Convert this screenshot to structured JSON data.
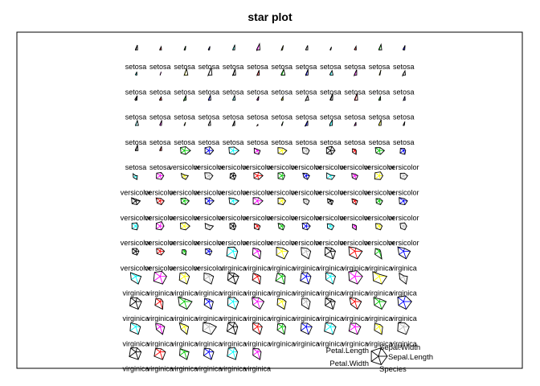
{
  "chart_data": {
    "type": "star",
    "title": "star plot",
    "variables": [
      "Sepal.Length",
      "Sepal.Width",
      "Petal.Length",
      "Petal.Width",
      "Species"
    ],
    "series_colors": [
      "#000000",
      "#ff0000",
      "#00cd00",
      "#0000ff",
      "#00ffff",
      "#ff00ff",
      "#ffff00",
      "#bebebe"
    ],
    "layout": {
      "columns": 12,
      "rows": 13
    },
    "species_levels": [
      "setosa",
      "versicolor",
      "virginica"
    ],
    "observations": [
      [
        5.1,
        3.5,
        1.4,
        0.2,
        1
      ],
      [
        4.9,
        3.0,
        1.4,
        0.2,
        1
      ],
      [
        4.7,
        3.2,
        1.3,
        0.2,
        1
      ],
      [
        4.6,
        3.1,
        1.5,
        0.2,
        1
      ],
      [
        5.0,
        3.6,
        1.4,
        0.2,
        1
      ],
      [
        5.4,
        3.9,
        1.7,
        0.4,
        1
      ],
      [
        4.6,
        3.4,
        1.4,
        0.3,
        1
      ],
      [
        5.0,
        3.4,
        1.5,
        0.2,
        1
      ],
      [
        4.4,
        2.9,
        1.4,
        0.2,
        1
      ],
      [
        4.9,
        3.1,
        1.5,
        0.1,
        1
      ],
      [
        5.4,
        3.7,
        1.5,
        0.2,
        1
      ],
      [
        4.8,
        3.4,
        1.6,
        0.2,
        1
      ],
      [
        4.8,
        3.0,
        1.4,
        0.1,
        1
      ],
      [
        4.3,
        3.0,
        1.1,
        0.1,
        1
      ],
      [
        5.8,
        4.0,
        1.2,
        0.2,
        1
      ],
      [
        5.7,
        4.4,
        1.5,
        0.4,
        1
      ],
      [
        5.4,
        3.9,
        1.3,
        0.4,
        1
      ],
      [
        5.1,
        3.5,
        1.4,
        0.3,
        1
      ],
      [
        5.7,
        3.8,
        1.7,
        0.3,
        1
      ],
      [
        5.1,
        3.8,
        1.5,
        0.3,
        1
      ],
      [
        5.4,
        3.4,
        1.7,
        0.2,
        1
      ],
      [
        5.1,
        3.7,
        1.5,
        0.4,
        1
      ],
      [
        4.6,
        3.6,
        1.0,
        0.2,
        1
      ],
      [
        5.1,
        3.3,
        1.7,
        0.5,
        1
      ],
      [
        4.8,
        3.4,
        1.9,
        0.2,
        1
      ],
      [
        5.0,
        3.0,
        1.6,
        0.2,
        1
      ],
      [
        5.0,
        3.4,
        1.6,
        0.4,
        1
      ],
      [
        5.2,
        3.5,
        1.5,
        0.2,
        1
      ],
      [
        5.2,
        3.4,
        1.4,
        0.2,
        1
      ],
      [
        4.7,
        3.2,
        1.6,
        0.2,
        1
      ],
      [
        4.8,
        3.1,
        1.6,
        0.2,
        1
      ],
      [
        5.4,
        3.4,
        1.5,
        0.4,
        1
      ],
      [
        5.2,
        4.1,
        1.5,
        0.1,
        1
      ],
      [
        5.5,
        4.2,
        1.4,
        0.2,
        1
      ],
      [
        4.9,
        3.1,
        1.5,
        0.2,
        1
      ],
      [
        5.0,
        3.2,
        1.2,
        0.2,
        1
      ],
      [
        5.5,
        3.5,
        1.3,
        0.2,
        1
      ],
      [
        4.9,
        3.6,
        1.4,
        0.1,
        1
      ],
      [
        4.4,
        3.0,
        1.3,
        0.2,
        1
      ],
      [
        5.1,
        3.4,
        1.5,
        0.2,
        1
      ],
      [
        5.0,
        3.5,
        1.3,
        0.3,
        1
      ],
      [
        4.5,
        2.3,
        1.3,
        0.3,
        1
      ],
      [
        4.4,
        3.2,
        1.3,
        0.2,
        1
      ],
      [
        5.0,
        3.5,
        1.6,
        0.6,
        1
      ],
      [
        5.1,
        3.8,
        1.9,
        0.4,
        1
      ],
      [
        4.8,
        3.0,
        1.4,
        0.3,
        1
      ],
      [
        5.1,
        3.8,
        1.6,
        0.2,
        1
      ],
      [
        4.6,
        3.2,
        1.4,
        0.2,
        1
      ],
      [
        5.3,
        3.7,
        1.5,
        0.2,
        1
      ],
      [
        5.0,
        3.3,
        1.4,
        0.2,
        1
      ],
      [
        7.0,
        3.2,
        4.7,
        1.4,
        2
      ],
      [
        6.4,
        3.2,
        4.5,
        1.5,
        2
      ],
      [
        6.9,
        3.1,
        4.9,
        1.5,
        2
      ],
      [
        5.5,
        2.3,
        4.0,
        1.3,
        2
      ],
      [
        6.5,
        2.8,
        4.6,
        1.5,
        2
      ],
      [
        5.7,
        2.8,
        4.5,
        1.3,
        2
      ],
      [
        6.3,
        3.3,
        4.7,
        1.6,
        2
      ],
      [
        4.9,
        2.4,
        3.3,
        1.0,
        2
      ],
      [
        6.6,
        2.9,
        4.6,
        1.3,
        2
      ],
      [
        5.2,
        2.7,
        3.9,
        1.4,
        2
      ],
      [
        5.0,
        2.0,
        3.5,
        1.0,
        2
      ],
      [
        5.9,
        3.0,
        4.2,
        1.5,
        2
      ],
      [
        6.0,
        2.2,
        4.0,
        1.0,
        2
      ],
      [
        6.1,
        2.9,
        4.7,
        1.4,
        2
      ],
      [
        5.6,
        2.9,
        3.6,
        1.3,
        2
      ],
      [
        6.7,
        3.1,
        4.4,
        1.4,
        2
      ],
      [
        5.6,
        3.0,
        4.5,
        1.5,
        2
      ],
      [
        5.8,
        2.7,
        4.1,
        1.0,
        2
      ],
      [
        6.2,
        2.2,
        4.5,
        1.5,
        2
      ],
      [
        5.6,
        2.5,
        3.9,
        1.1,
        2
      ],
      [
        5.9,
        3.2,
        4.8,
        1.8,
        2
      ],
      [
        6.1,
        2.8,
        4.0,
        1.3,
        2
      ],
      [
        6.3,
        2.5,
        4.9,
        1.5,
        2
      ],
      [
        6.1,
        2.8,
        4.7,
        1.2,
        2
      ],
      [
        6.4,
        2.9,
        4.3,
        1.3,
        2
      ],
      [
        6.6,
        3.0,
        4.4,
        1.4,
        2
      ],
      [
        6.8,
        2.8,
        4.8,
        1.4,
        2
      ],
      [
        6.7,
        3.0,
        5.0,
        1.7,
        2
      ],
      [
        6.0,
        2.9,
        4.5,
        1.5,
        2
      ],
      [
        5.7,
        2.6,
        3.5,
        1.0,
        2
      ],
      [
        5.5,
        2.4,
        3.8,
        1.1,
        2
      ],
      [
        5.5,
        2.4,
        3.7,
        1.0,
        2
      ],
      [
        5.8,
        2.7,
        3.9,
        1.2,
        2
      ],
      [
        6.0,
        2.7,
        5.1,
        1.6,
        2
      ],
      [
        5.4,
        3.0,
        4.5,
        1.5,
        2
      ],
      [
        6.0,
        3.4,
        4.5,
        1.6,
        2
      ],
      [
        6.7,
        3.1,
        4.7,
        1.5,
        2
      ],
      [
        6.3,
        2.3,
        4.4,
        1.3,
        2
      ],
      [
        5.6,
        3.0,
        4.1,
        1.3,
        2
      ],
      [
        5.5,
        2.5,
        4.0,
        1.3,
        2
      ],
      [
        5.5,
        2.6,
        4.4,
        1.2,
        2
      ],
      [
        6.1,
        3.0,
        4.6,
        1.4,
        2
      ],
      [
        5.8,
        2.6,
        4.0,
        1.2,
        2
      ],
      [
        5.0,
        2.3,
        3.3,
        1.0,
        2
      ],
      [
        5.6,
        2.7,
        4.2,
        1.3,
        2
      ],
      [
        5.7,
        3.0,
        4.2,
        1.2,
        2
      ],
      [
        5.7,
        2.9,
        4.2,
        1.3,
        2
      ],
      [
        6.2,
        2.9,
        4.3,
        1.3,
        2
      ],
      [
        5.1,
        2.5,
        3.0,
        1.1,
        2
      ],
      [
        5.7,
        2.8,
        4.1,
        1.3,
        2
      ],
      [
        6.3,
        3.3,
        6.0,
        2.5,
        3
      ],
      [
        5.8,
        2.7,
        5.1,
        1.9,
        3
      ],
      [
        7.1,
        3.0,
        5.9,
        2.1,
        3
      ],
      [
        6.3,
        2.9,
        5.6,
        1.8,
        3
      ],
      [
        6.5,
        3.0,
        5.8,
        2.2,
        3
      ],
      [
        7.6,
        3.0,
        6.6,
        2.1,
        3
      ],
      [
        4.9,
        2.5,
        4.5,
        1.7,
        3
      ],
      [
        7.3,
        2.9,
        6.3,
        1.8,
        3
      ],
      [
        6.7,
        2.5,
        5.8,
        1.8,
        3
      ],
      [
        7.2,
        3.6,
        6.1,
        2.5,
        3
      ],
      [
        6.5,
        3.2,
        5.1,
        2.0,
        3
      ],
      [
        6.4,
        2.7,
        5.3,
        1.9,
        3
      ],
      [
        6.8,
        3.0,
        5.5,
        2.1,
        3
      ],
      [
        5.7,
        2.5,
        5.0,
        2.0,
        3
      ],
      [
        5.8,
        2.8,
        5.1,
        2.4,
        3
      ],
      [
        6.4,
        3.2,
        5.3,
        2.3,
        3
      ],
      [
        6.5,
        3.0,
        5.5,
        1.8,
        3
      ],
      [
        7.7,
        3.8,
        6.7,
        2.2,
        3
      ],
      [
        7.7,
        2.6,
        6.9,
        2.3,
        3
      ],
      [
        6.0,
        2.2,
        5.0,
        1.5,
        3
      ],
      [
        6.9,
        3.2,
        5.7,
        2.3,
        3
      ],
      [
        5.6,
        2.8,
        4.9,
        2.0,
        3
      ],
      [
        7.7,
        2.8,
        6.7,
        2.0,
        3
      ],
      [
        6.3,
        2.7,
        4.9,
        1.8,
        3
      ],
      [
        6.7,
        3.3,
        5.7,
        2.1,
        3
      ],
      [
        7.2,
        3.2,
        6.0,
        1.8,
        3
      ],
      [
        6.2,
        2.8,
        4.8,
        1.8,
        3
      ],
      [
        6.1,
        3.0,
        4.9,
        1.8,
        3
      ],
      [
        6.4,
        2.8,
        5.6,
        2.1,
        3
      ],
      [
        7.2,
        3.0,
        5.8,
        1.6,
        3
      ],
      [
        7.4,
        2.8,
        6.1,
        1.9,
        3
      ],
      [
        7.9,
        3.8,
        6.4,
        2.0,
        3
      ],
      [
        6.4,
        2.8,
        5.6,
        2.2,
        3
      ],
      [
        6.3,
        2.8,
        5.1,
        1.5,
        3
      ],
      [
        6.1,
        2.6,
        5.6,
        1.4,
        3
      ],
      [
        7.7,
        3.0,
        6.1,
        2.3,
        3
      ],
      [
        6.3,
        3.4,
        5.6,
        2.4,
        3
      ],
      [
        6.4,
        3.1,
        5.5,
        1.8,
        3
      ],
      [
        6.0,
        3.0,
        4.8,
        1.8,
        3
      ],
      [
        6.9,
        3.1,
        5.4,
        2.1,
        3
      ],
      [
        6.7,
        3.1,
        5.6,
        2.4,
        3
      ],
      [
        6.9,
        3.1,
        5.1,
        2.3,
        3
      ],
      [
        5.8,
        2.7,
        5.1,
        1.9,
        3
      ],
      [
        6.8,
        3.2,
        5.9,
        2.3,
        3
      ],
      [
        6.7,
        3.3,
        5.7,
        2.5,
        3
      ],
      [
        6.7,
        3.0,
        5.2,
        2.3,
        3
      ],
      [
        6.3,
        2.5,
        5.0,
        1.9,
        3
      ],
      [
        6.5,
        3.0,
        5.2,
        2.0,
        3
      ],
      [
        6.2,
        3.4,
        5.4,
        2.3,
        3
      ],
      [
        5.9,
        3.0,
        5.1,
        1.8,
        3
      ]
    ],
    "key": {
      "labels": [
        "Sepal.Length",
        "Sepal.Width",
        "Petal.Length",
        "Petal.Width",
        "Species"
      ]
    }
  }
}
